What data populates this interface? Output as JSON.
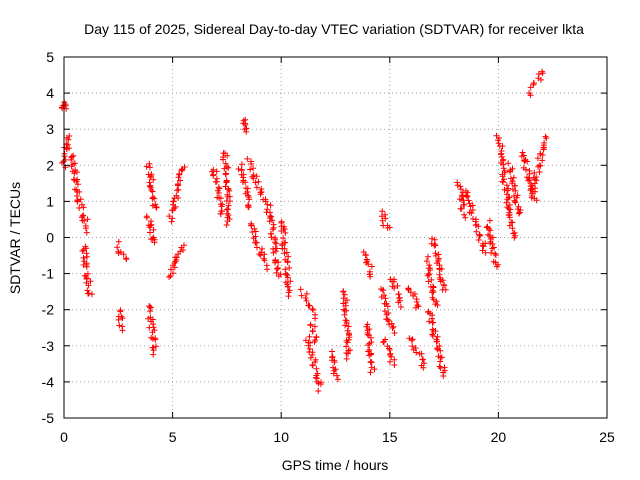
{
  "chart_data": {
    "type": "scatter",
    "title": "Day 115 of 2025, Sidereal Day-to-day VTEC variation (SDTVAR) for receiver lkta",
    "xlabel": "GPS time / hours",
    "ylabel": "SDTVAR / TECUs",
    "xlim": [
      0,
      25
    ],
    "ylim": [
      -5,
      5
    ],
    "x_ticks": [
      0,
      5,
      10,
      15,
      20,
      25
    ],
    "y_ticks": [
      -5,
      -4,
      -3,
      -2,
      -1,
      0,
      1,
      2,
      3,
      4,
      5
    ],
    "x_tick_labels": [
      "0",
      "5",
      "10",
      "15",
      "20",
      "25"
    ],
    "y_tick_labels": [
      "-5",
      "-4",
      "-3",
      "-2",
      "-1",
      "0",
      "1",
      "2",
      "3",
      "4",
      "5"
    ],
    "grid": true,
    "marker": "+",
    "marker_color": "#ff0000",
    "arcs": [
      {
        "x": [
          0.0,
          0.2
        ],
        "y": [
          2.0,
          2.8
        ]
      },
      {
        "x": [
          0.0,
          0.0
        ],
        "y": [
          3.6,
          3.7
        ]
      },
      {
        "x": [
          0.3,
          0.7
        ],
        "y": [
          2.4,
          1.0
        ]
      },
      {
        "x": [
          0.7,
          1.1
        ],
        "y": [
          1.0,
          0.2
        ]
      },
      {
        "x": [
          0.9,
          1.2
        ],
        "y": [
          -0.2,
          -1.6
        ]
      },
      {
        "x": [
          2.5,
          2.8
        ],
        "y": [
          -0.2,
          -0.6
        ]
      },
      {
        "x": [
          2.5,
          2.7
        ],
        "y": [
          -2.0,
          -2.5
        ]
      },
      {
        "x": [
          3.9,
          4.2
        ],
        "y": [
          2.0,
          0.8
        ]
      },
      {
        "x": [
          3.9,
          4.1
        ],
        "y": [
          0.6,
          -0.2
        ]
      },
      {
        "x": [
          3.9,
          4.2
        ],
        "y": [
          -1.9,
          -3.2
        ]
      },
      {
        "x": [
          4.9,
          5.5
        ],
        "y": [
          0.5,
          2.0
        ]
      },
      {
        "x": [
          4.9,
          5.5
        ],
        "y": [
          -1.1,
          -0.2
        ]
      },
      {
        "x": [
          6.9,
          7.3
        ],
        "y": [
          1.9,
          0.6
        ]
      },
      {
        "x": [
          7.4,
          7.6
        ],
        "y": [
          2.4,
          0.4
        ]
      },
      {
        "x": [
          8.1,
          8.6
        ],
        "y": [
          2.0,
          0.8
        ]
      },
      {
        "x": [
          8.2,
          8.4
        ],
        "y": [
          3.3,
          2.9
        ]
      },
      {
        "x": [
          8.5,
          9.3
        ],
        "y": [
          2.1,
          0.9
        ]
      },
      {
        "x": [
          8.6,
          9.3
        ],
        "y": [
          0.4,
          -0.8
        ]
      },
      {
        "x": [
          9.4,
          9.9
        ],
        "y": [
          0.9,
          -1.1
        ]
      },
      {
        "x": [
          10.0,
          10.4
        ],
        "y": [
          0.5,
          -1.6
        ]
      },
      {
        "x": [
          11.0,
          11.5
        ],
        "y": [
          -1.5,
          -2.2
        ]
      },
      {
        "x": [
          11.2,
          11.8
        ],
        "y": [
          -2.8,
          -4.2
        ]
      },
      {
        "x": [
          11.4,
          11.6
        ],
        "y": [
          -2.4,
          -2.9
        ]
      },
      {
        "x": [
          12.3,
          12.5
        ],
        "y": [
          -3.2,
          -3.9
        ]
      },
      {
        "x": [
          12.9,
          13.1
        ],
        "y": [
          -1.5,
          -3.3
        ]
      },
      {
        "x": [
          13.9,
          14.2
        ],
        "y": [
          -0.4,
          -1.1
        ]
      },
      {
        "x": [
          14.0,
          14.2
        ],
        "y": [
          -2.4,
          -3.7
        ]
      },
      {
        "x": [
          14.6,
          14.9
        ],
        "y": [
          0.7,
          0.2
        ]
      },
      {
        "x": [
          14.6,
          15.1
        ],
        "y": [
          -1.4,
          -2.6
        ]
      },
      {
        "x": [
          14.7,
          15.2
        ],
        "y": [
          -2.8,
          -3.5
        ]
      },
      {
        "x": [
          15.1,
          15.5
        ],
        "y": [
          -1.1,
          -1.9
        ]
      },
      {
        "x": [
          15.9,
          16.3
        ],
        "y": [
          -1.4,
          -2.0
        ]
      },
      {
        "x": [
          16.0,
          16.6
        ],
        "y": [
          -2.8,
          -3.6
        ]
      },
      {
        "x": [
          16.7,
          17.1
        ],
        "y": [
          -0.6,
          -1.9
        ]
      },
      {
        "x": [
          16.8,
          17.5
        ],
        "y": [
          -2.0,
          -3.8
        ]
      },
      {
        "x": [
          17.0,
          17.5
        ],
        "y": [
          0.0,
          -1.5
        ]
      },
      {
        "x": [
          18.2,
          18.4
        ],
        "y": [
          1.5,
          0.6
        ]
      },
      {
        "x": [
          18.5,
          19.4
        ],
        "y": [
          1.3,
          -0.4
        ]
      },
      {
        "x": [
          19.5,
          19.9
        ],
        "y": [
          0.4,
          -0.8
        ]
      },
      {
        "x": [
          20.0,
          20.7
        ],
        "y": [
          2.8,
          0.0
        ]
      },
      {
        "x": [
          20.5,
          21.0
        ],
        "y": [
          2.0,
          0.6
        ]
      },
      {
        "x": [
          21.1,
          21.7
        ],
        "y": [
          2.4,
          1.0
        ]
      },
      {
        "x": [
          21.5,
          22.2
        ],
        "y": [
          1.2,
          2.8
        ]
      },
      {
        "x": [
          21.4,
          22.1
        ],
        "y": [
          4.0,
          4.6
        ]
      }
    ]
  }
}
